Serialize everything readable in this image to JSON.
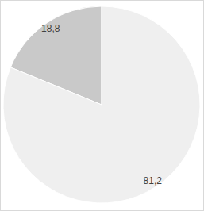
{
  "chart_data": {
    "type": "pie",
    "values": [
      18.8,
      81.2
    ],
    "value_labels": [
      "18,8",
      "81,2"
    ],
    "colors": [
      "#c9c9c9",
      "#efefef"
    ],
    "data_labels": true
  }
}
